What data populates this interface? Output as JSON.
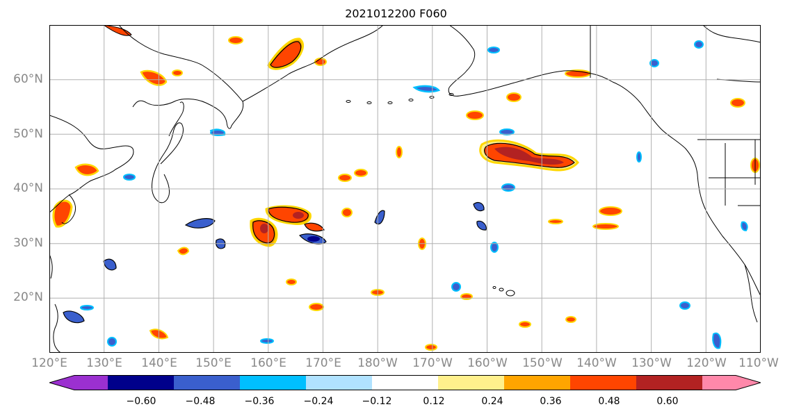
{
  "title": "2021012200 F060",
  "latitude_labels": [
    "60°N",
    "50°N",
    "40°N",
    "30°N",
    "20°N"
  ],
  "longitude_labels": [
    "120°E",
    "130°E",
    "140°E",
    "150°E",
    "160°E",
    "170°E",
    "180°W",
    "170°W",
    "160°W",
    "150°W",
    "140°W",
    "130°W",
    "120°W",
    "110°W"
  ],
  "colorbar": {
    "tick_labels": [
      "−0.60",
      "−0.48",
      "−0.36",
      "−0.24",
      "−0.12",
      "0.12",
      "0.24",
      "0.36",
      "0.48",
      "0.60"
    ],
    "colors": [
      "#9b30d0",
      "#00008b",
      "#3a5fcd",
      "#00bfff",
      "#b0e2ff",
      "#ffffff",
      "#fff08c",
      "#ffa500",
      "#ff4500",
      "#b22222",
      "#ff88aa"
    ]
  },
  "chart_data": {
    "type": "heatmap",
    "title": "2021012200 F060",
    "lon_range": [
      120,
      250
    ],
    "lat_range": [
      10,
      70
    ],
    "levels": [
      -0.6,
      -0.48,
      -0.36,
      -0.24,
      -0.12,
      0.12,
      0.24,
      0.36,
      0.48,
      0.6
    ],
    "grid": true,
    "features": [
      {
        "lon": 161.5,
        "lat": 35.5,
        "value": 0.52
      },
      {
        "lon": 164.0,
        "lat": 32.5,
        "value": 0.5
      },
      {
        "lon": 168.0,
        "lat": 30.5,
        "value": -0.42
      },
      {
        "lon": 130.5,
        "lat": 33.5,
        "value": -0.45
      },
      {
        "lon": 123.0,
        "lat": 34.0,
        "value": 0.46
      },
      {
        "lon": 165.0,
        "lat": 63.0,
        "value": 0.46
      },
      {
        "lon": 161.0,
        "lat": 32.5,
        "value": 0.45
      },
      {
        "lon": 162.5,
        "lat": 35.8,
        "value": 0.45
      },
      {
        "lon": 159.5,
        "lat": 47.0,
        "value": 0.48
      },
      {
        "lon": 147.5,
        "lat": 45.0,
        "value": 0.5
      },
      {
        "lon": 146.5,
        "lat": 43.5,
        "value": 0.46
      },
      {
        "lon": 190.0,
        "lat": 51.5,
        "value": -0.38
      },
      {
        "lon": 193.5,
        "lat": 48.8,
        "value": 0.46
      },
      {
        "lon": 153.0,
        "lat": 26.5,
        "value": -0.4
      },
      {
        "lon": 172.0,
        "lat": 19.0,
        "value": 0.4
      },
      {
        "lon": 131.5,
        "lat": 26.5,
        "value": -0.44
      },
      {
        "lon": 126.0,
        "lat": 16.5,
        "value": -0.42
      },
      {
        "lon": 147.5,
        "lat": 30.0,
        "value": -0.38
      },
      {
        "lon": 158.0,
        "lat": 21.0,
        "value": 0.42
      },
      {
        "lon": 181.0,
        "lat": 20.5,
        "value": 0.42
      }
    ]
  }
}
